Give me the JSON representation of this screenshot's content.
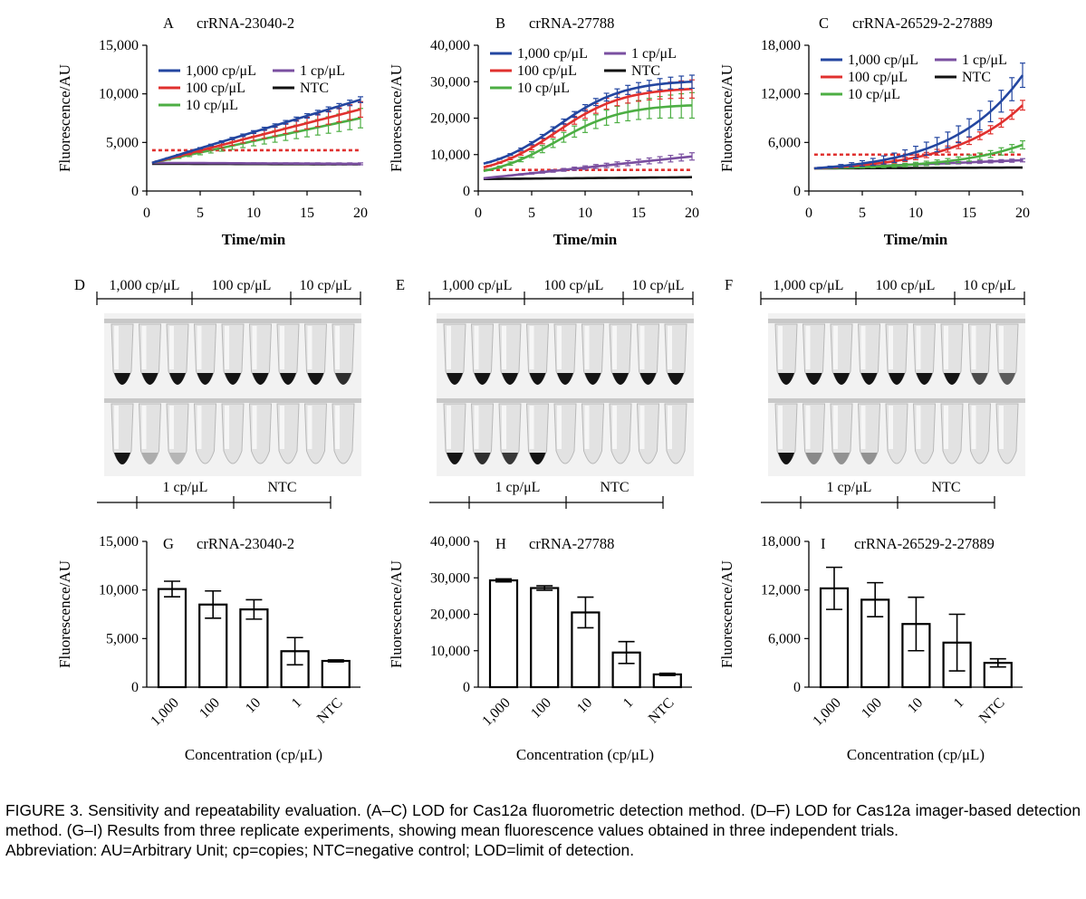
{
  "figure": {
    "caption": "FIGURE 3. Sensitivity and repeatability evaluation. (A–C) LOD for Cas12a fluorometric detection method. (D–F) LOD for Cas12a imager-based detection method. (G–I) Results from three replicate experiments, showing mean fluorescence values obtained in three independent trials.",
    "abbreviation": "Abbreviation: AU=Arbitrary Unit; cp=copies; NTC=negative control; LOD=limit of detection."
  },
  "colors": {
    "c1000": "#2346a0",
    "c100": "#e0302e",
    "c10": "#4cae43",
    "c1": "#7a4fa0",
    "ntc": "#111111",
    "threshold": "#e0302e"
  },
  "chart_data": [
    {
      "panel": "A",
      "type": "line",
      "title": "crRNA-23040-2",
      "xlabel": "Time/min",
      "ylabel": "Fluorescence/AU",
      "xlim": [
        0,
        20
      ],
      "ylim": [
        0,
        15000
      ],
      "xticks": [
        "0",
        "5",
        "10",
        "15",
        "20"
      ],
      "yticks": [
        "0",
        "5,000",
        "10,000",
        "15,000"
      ],
      "legend": [
        "1,000 cp/μL",
        "100 cp/μL",
        "10 cp/μL",
        "1 cp/μL",
        "NTC"
      ],
      "legend_position": "top-left",
      "threshold": 4200,
      "series": [
        {
          "name": "1,000 cp/μL",
          "color_key": "c1000",
          "start": 2900,
          "end": 9400,
          "err_end": 300
        },
        {
          "name": "100 cp/μL",
          "color_key": "c100",
          "start": 2900,
          "end": 8400,
          "err_end": 800
        },
        {
          "name": "10 cp/μL",
          "color_key": "c10",
          "start": 2900,
          "end": 7500,
          "err_end": 1000
        },
        {
          "name": "1 cp/μL",
          "color_key": "c1",
          "start": 2900,
          "end": 2800,
          "err_end": 100
        },
        {
          "name": "NTC",
          "color_key": "ntc",
          "start": 2800,
          "end": 2750,
          "err_end": 0
        }
      ]
    },
    {
      "panel": "B",
      "type": "line",
      "title": "crRNA-27788",
      "xlabel": "Time/min",
      "ylabel": "Fluorescence/AU",
      "xlim": [
        0,
        20
      ],
      "ylim": [
        0,
        40000
      ],
      "xticks": [
        "0",
        "5",
        "10",
        "15",
        "20"
      ],
      "yticks": [
        "0",
        "10,000",
        "20,000",
        "30,000",
        "40,000"
      ],
      "legend": [
        "1,000 cp/μL",
        "100 cp/μL",
        "10 cp/μL",
        "1 cp/μL",
        "NTC"
      ],
      "legend_position": "top-left",
      "threshold": 5800,
      "series": [
        {
          "name": "1,000 cp/μL",
          "color_key": "c1000",
          "start": 7500,
          "end": 30000,
          "err_end": 1800,
          "shape": "sigmoid"
        },
        {
          "name": "100 cp/μL",
          "color_key": "c100",
          "start": 6500,
          "end": 28000,
          "err_end": 2500,
          "shape": "sigmoid"
        },
        {
          "name": "10 cp/μL",
          "color_key": "c10",
          "start": 5500,
          "end": 23500,
          "err_end": 3500,
          "shape": "sigmoid"
        },
        {
          "name": "1 cp/μL",
          "color_key": "c1",
          "start": 3500,
          "end": 9500,
          "err_end": 1000
        },
        {
          "name": "NTC",
          "color_key": "ntc",
          "start": 3300,
          "end": 3800,
          "err_end": 0
        }
      ]
    },
    {
      "panel": "C",
      "type": "line",
      "title": "crRNA-26529-2-27889",
      "xlabel": "Time/min",
      "ylabel": "Fluorescence/AU",
      "xlim": [
        0,
        20
      ],
      "ylim": [
        0,
        18000
      ],
      "xticks": [
        "0",
        "5",
        "10",
        "15",
        "20"
      ],
      "yticks": [
        "0",
        "6,000",
        "12,000",
        "18,000"
      ],
      "legend": [
        "1,000 cp/μL",
        "100 cp/μL",
        "10 cp/μL",
        "1 cp/μL",
        "NTC"
      ],
      "legend_position": "top-left",
      "threshold": 4500,
      "series": [
        {
          "name": "1,000 cp/μL",
          "color_key": "c1000",
          "start": 2800,
          "end": 14300,
          "err_end": 1500,
          "shape": "exp"
        },
        {
          "name": "100 cp/μL",
          "color_key": "c100",
          "start": 2800,
          "end": 10600,
          "err_end": 600,
          "shape": "exp"
        },
        {
          "name": "10 cp/μL",
          "color_key": "c10",
          "start": 2800,
          "end": 5700,
          "err_end": 500,
          "shape": "exp"
        },
        {
          "name": "1 cp/μL",
          "color_key": "c1",
          "start": 2800,
          "end": 3800,
          "err_end": 200
        },
        {
          "name": "NTC",
          "color_key": "ntc",
          "start": 2800,
          "end": 2900,
          "err_end": 0
        }
      ]
    },
    {
      "panel": "G",
      "type": "bar",
      "title": "crRNA-23040-2",
      "xlabel": "Concentration (cp/μL)",
      "ylabel": "Fluorescence/AU",
      "ylim": [
        0,
        15000
      ],
      "yticks": [
        "0",
        "5,000",
        "10,000",
        "15,000"
      ],
      "categories": [
        "1,000",
        "100",
        "10",
        "1",
        "NTC"
      ],
      "values": [
        10100,
        8500,
        8000,
        3700,
        2700
      ],
      "errors": [
        800,
        1400,
        1000,
        1400,
        100
      ]
    },
    {
      "panel": "H",
      "type": "bar",
      "title": "crRNA-27788",
      "xlabel": "Concentration (cp/μL)",
      "ylabel": "Fluorescence/AU",
      "ylim": [
        0,
        40000
      ],
      "yticks": [
        "0",
        "10,000",
        "20,000",
        "30,000",
        "40,000"
      ],
      "categories": [
        "1,000",
        "100",
        "10",
        "1",
        "NTC"
      ],
      "values": [
        29300,
        27200,
        20500,
        9500,
        3500
      ],
      "errors": [
        400,
        600,
        4200,
        3000,
        300
      ]
    },
    {
      "panel": "I",
      "type": "bar",
      "title": "crRNA-26529-2-27889",
      "xlabel": "Concentration (cp/μL)",
      "ylabel": "Fluorescence/AU",
      "ylim": [
        0,
        18000
      ],
      "yticks": [
        "0",
        "6,000",
        "12,000",
        "18,000"
      ],
      "categories": [
        "1,000",
        "100",
        "10",
        "1",
        "NTC"
      ],
      "values": [
        12200,
        10800,
        7800,
        5500,
        3000
      ],
      "errors": [
        2600,
        2100,
        3300,
        3500,
        500
      ]
    }
  ],
  "tube_panels": [
    {
      "panel": "D",
      "top_labels": [
        "1,000 cp/μL",
        "100 cp/μL",
        "10 cp/μL"
      ],
      "bottom_labels": [
        "1 cp/μL",
        "NTC"
      ],
      "top_row": [
        1,
        1,
        1,
        1,
        1,
        1,
        1,
        1,
        0.85
      ],
      "bottom_row": [
        1,
        0.15,
        0.1,
        0,
        0,
        0,
        0,
        0,
        0
      ]
    },
    {
      "panel": "E",
      "top_labels": [
        "1,000 cp/μL",
        "100 cp/μL",
        "10 cp/μL"
      ],
      "bottom_labels": [
        "1 cp/μL",
        "NTC"
      ],
      "top_row": [
        1,
        1,
        1,
        1,
        1,
        1,
        1,
        1,
        1
      ],
      "bottom_row": [
        1,
        0.85,
        0.8,
        1,
        0,
        0,
        0,
        0,
        0
      ]
    },
    {
      "panel": "F",
      "top_labels": [
        "1,000 cp/μL",
        "100 cp/μL",
        "10 cp/μL"
      ],
      "bottom_labels": [
        "1 cp/μL",
        "NTC"
      ],
      "top_row": [
        1,
        1,
        1,
        1,
        1,
        1,
        1,
        0.7,
        0.6
      ],
      "bottom_row": [
        1,
        0.35,
        0.3,
        0.3,
        0,
        0,
        0,
        0,
        0
      ]
    }
  ]
}
